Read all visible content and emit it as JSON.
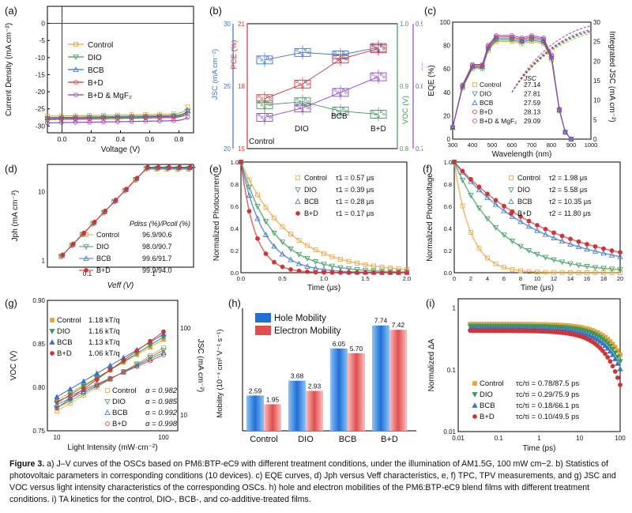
{
  "figure": {
    "caption_label": "Figure 3.",
    "caption_text": "a) J–V curves of the OSCs based on PM6:BTP-eC9 with different treatment conditions, under the illumination of AM1.5G, 100 mW cm−2. b) Statistics of photovoltaic parameters in corresponding conditions (10 devices). c) EQE curves, d) Jph versus Veff characteristics, e, f) TPC, TPV measurements, and g) JSC and VOC versus light intensity characteristics of the corresponding OSCs. h) hole and electron mobilities of the PM6:BTP-eC9 blend films with different treatment conditions. i) TA kinetics for the control, DIO-, BCB-, and co-additive-treated films."
  },
  "colors": {
    "control": "#E8A33D",
    "dio": "#3C9A5C",
    "bcb": "#3B74C4",
    "bd": "#D03535",
    "mgf2": "#8E47C8",
    "hole": "#1F6FD6",
    "electron": "#E24C4C"
  },
  "chart_data": [
    {
      "panel": "a",
      "type": "line",
      "title": "",
      "xlabel": "Voltage (V)",
      "ylabel": "Current Density (mA cm⁻²)",
      "xlim": [
        -0.1,
        0.9
      ],
      "ylim": [
        -32,
        5
      ],
      "x_ticks": [
        "0.0",
        "0.2",
        "0.4",
        "0.6",
        "0.8"
      ],
      "y_ticks": [
        "-30",
        "-25",
        "-20",
        "-15",
        "-10",
        "-5",
        "0"
      ],
      "legend": [
        "Control",
        "DIO",
        "BCB",
        "B+D",
        "B+D & MgF₂"
      ],
      "series": [
        {
          "name": "Control",
          "jsc": 27.14,
          "voc": 0.84
        },
        {
          "name": "DIO",
          "jsc": 27.81,
          "voc": 0.85
        },
        {
          "name": "BCB",
          "jsc": 27.59,
          "voc": 0.85
        },
        {
          "name": "B+D",
          "jsc": 28.13,
          "voc": 0.855
        },
        {
          "name": "B+D & MgF₂",
          "jsc": 29.09,
          "voc": 0.86
        }
      ]
    },
    {
      "panel": "b",
      "type": "box",
      "categories": [
        "Control",
        "DIO",
        "BCB",
        "B+D"
      ],
      "axes": {
        "jsc": {
          "label": "JSC (mA cm⁻²)",
          "ticks": [
            "20",
            "25",
            "30"
          ]
        },
        "pce": {
          "label": "PCE (%)",
          "ticks": [
            "15",
            "18",
            "21"
          ]
        },
        "voc": {
          "label": "VOC (V)",
          "ticks": [
            "0.8",
            "0.9",
            "1.0"
          ]
        },
        "ff": {
          "label": "FF",
          "ticks": [
            "0.7",
            "0.8",
            "0.9"
          ]
        }
      },
      "jsc": [
        27.1,
        27.7,
        27.5,
        28.1
      ],
      "pce": [
        17.4,
        18.1,
        19.3,
        19.8
      ],
      "voc": [
        0.87,
        0.875,
        0.86,
        0.855
      ],
      "ff": [
        0.75,
        0.765,
        0.79,
        0.815
      ]
    },
    {
      "panel": "c",
      "type": "line",
      "xlabel": "Wavelength (nm)",
      "ylabel": "EQE (%)",
      "y2label": "Integrated JSC (mA cm⁻²)",
      "xlim": [
        300,
        1000
      ],
      "ylim": [
        0,
        100
      ],
      "x_ticks": [
        "300",
        "400",
        "500",
        "600",
        "700",
        "800",
        "900",
        "1000"
      ],
      "y_ticks": [
        "0",
        "20",
        "40",
        "60",
        "80",
        "100"
      ],
      "y2_ticks": [
        "0",
        "5",
        "10",
        "15",
        "20",
        "25",
        "30"
      ],
      "legend_header": "JSC",
      "series": [
        {
          "name": "Control",
          "jsc": "27.14"
        },
        {
          "name": "DIO",
          "jsc": "27.81"
        },
        {
          "name": "BCB",
          "jsc": "27.59"
        },
        {
          "name": "B+D",
          "jsc": "28.13"
        },
        {
          "name": "B+D & MgF₂",
          "jsc": "29.09"
        }
      ]
    },
    {
      "panel": "d",
      "type": "scatter",
      "xlabel": "Veff (V)",
      "ylabel": "Jph (mA cm⁻²)",
      "x_ticks": [
        "0.1",
        "1"
      ],
      "y_ticks": [
        "1",
        "10"
      ],
      "legend_header": "Pdiss (%)/Pcoll (%)",
      "series": [
        {
          "name": "Control",
          "value": "96.9/90.6"
        },
        {
          "name": "DIO",
          "value": "98.0/90.7"
        },
        {
          "name": "BCB",
          "value": "99.6/91.7"
        },
        {
          "name": "B+D",
          "value": "99.9/94.0"
        }
      ]
    },
    {
      "panel": "e",
      "type": "scatter",
      "xlabel": "Time (μs)",
      "ylabel": "Normalized Photocurrent",
      "xlim": [
        0,
        2
      ],
      "ylim": [
        0,
        1
      ],
      "x_ticks": [
        "0.0",
        "0.5",
        "1.0",
        "1.5",
        "2.0"
      ],
      "y_ticks": [
        "0.0",
        "0.2",
        "0.4",
        "0.6",
        "0.8",
        "1.0"
      ],
      "param": "τ1",
      "series": [
        {
          "name": "Control",
          "tau": 0.57,
          "label": "0.57 μs"
        },
        {
          "name": "DIO",
          "tau": 0.39,
          "label": "0.39 μs"
        },
        {
          "name": "BCB",
          "tau": 0.28,
          "label": "0.28 μs"
        },
        {
          "name": "B+D",
          "tau": 0.17,
          "label": "0.17 μs"
        }
      ]
    },
    {
      "panel": "f",
      "type": "scatter",
      "xlabel": "Time (μs)",
      "ylabel": "Normalized Photovoltage",
      "xlim": [
        0,
        20
      ],
      "ylim": [
        0,
        1
      ],
      "x_ticks": [
        "0",
        "2",
        "4",
        "6",
        "8",
        "10",
        "12",
        "14",
        "16",
        "18",
        "20"
      ],
      "y_ticks": [
        "0.0",
        "0.2",
        "0.4",
        "0.6",
        "0.8",
        "1.0"
      ],
      "param": "τ2",
      "series": [
        {
          "name": "Control",
          "tau": 1.98,
          "label": "1.98 μs"
        },
        {
          "name": "DIO",
          "tau": 5.58,
          "label": "5.58 μs"
        },
        {
          "name": "BCB",
          "tau": 10.35,
          "label": "10.35 μs"
        },
        {
          "name": "B+D",
          "tau": 11.8,
          "label": "11.80 μs"
        }
      ]
    },
    {
      "panel": "g",
      "type": "scatter",
      "xlabel": "Light Intensity (mW·cm⁻²)",
      "ylabel": "VOC (V)",
      "y2label": "JSC (mA cm⁻²)",
      "y_ticks": [
        "0.75",
        "0.80",
        "0.85",
        "0.90"
      ],
      "x_ticks": [
        "10",
        "100"
      ],
      "y2_ticks": [
        "10",
        "100"
      ],
      "voc_series": [
        {
          "name": "Control",
          "slope": "1.18 kT/q"
        },
        {
          "name": "DIO",
          "slope": "1.16 kT/q"
        },
        {
          "name": "BCB",
          "slope": "1.13 kT/q"
        },
        {
          "name": "B+D",
          "slope": "1.06 kT/q"
        }
      ],
      "jsc_series": [
        {
          "name": "Control",
          "alpha": "0.982"
        },
        {
          "name": "DIO",
          "alpha": "0.985"
        },
        {
          "name": "BCB",
          "alpha": "0.992"
        },
        {
          "name": "B+D",
          "alpha": "0.998"
        }
      ]
    },
    {
      "panel": "h",
      "type": "bar",
      "categories": [
        "Control",
        "DIO",
        "BCB",
        "B+D"
      ],
      "ylabel": "Mobility (10⁻⁴ cm² V⁻¹ s⁻¹)",
      "ylim": [
        0,
        9
      ],
      "series": [
        {
          "name": "Hole Mobility",
          "values": [
            2.59,
            3.68,
            6.05,
            7.74
          ],
          "labels": [
            "2.59",
            "3.68",
            "6.05",
            "7.74"
          ]
        },
        {
          "name": "Electron Mobility",
          "values": [
            1.95,
            2.93,
            5.7,
            7.42
          ],
          "labels": [
            "1.95",
            "2.93",
            "5.70",
            "7.42"
          ]
        }
      ]
    },
    {
      "panel": "i",
      "type": "scatter",
      "xlabel": "Time (ps)",
      "ylabel": "Normalized ΔA",
      "x_ticks": [
        "0.01",
        "0.1",
        "1",
        "10",
        "100"
      ],
      "y_ticks": [
        "0.01",
        "0.1",
        "1"
      ],
      "series": [
        {
          "name": "Control",
          "label": "τc/τi = 0.78/87.5 ps"
        },
        {
          "name": "DIO",
          "label": "τc/τi = 0.29/75.9 ps"
        },
        {
          "name": "BCB",
          "label": "τc/τi = 0.18/66.1 ps"
        },
        {
          "name": "B+D",
          "label": "τc/τi = 0.10/49.5 ps"
        }
      ]
    }
  ]
}
